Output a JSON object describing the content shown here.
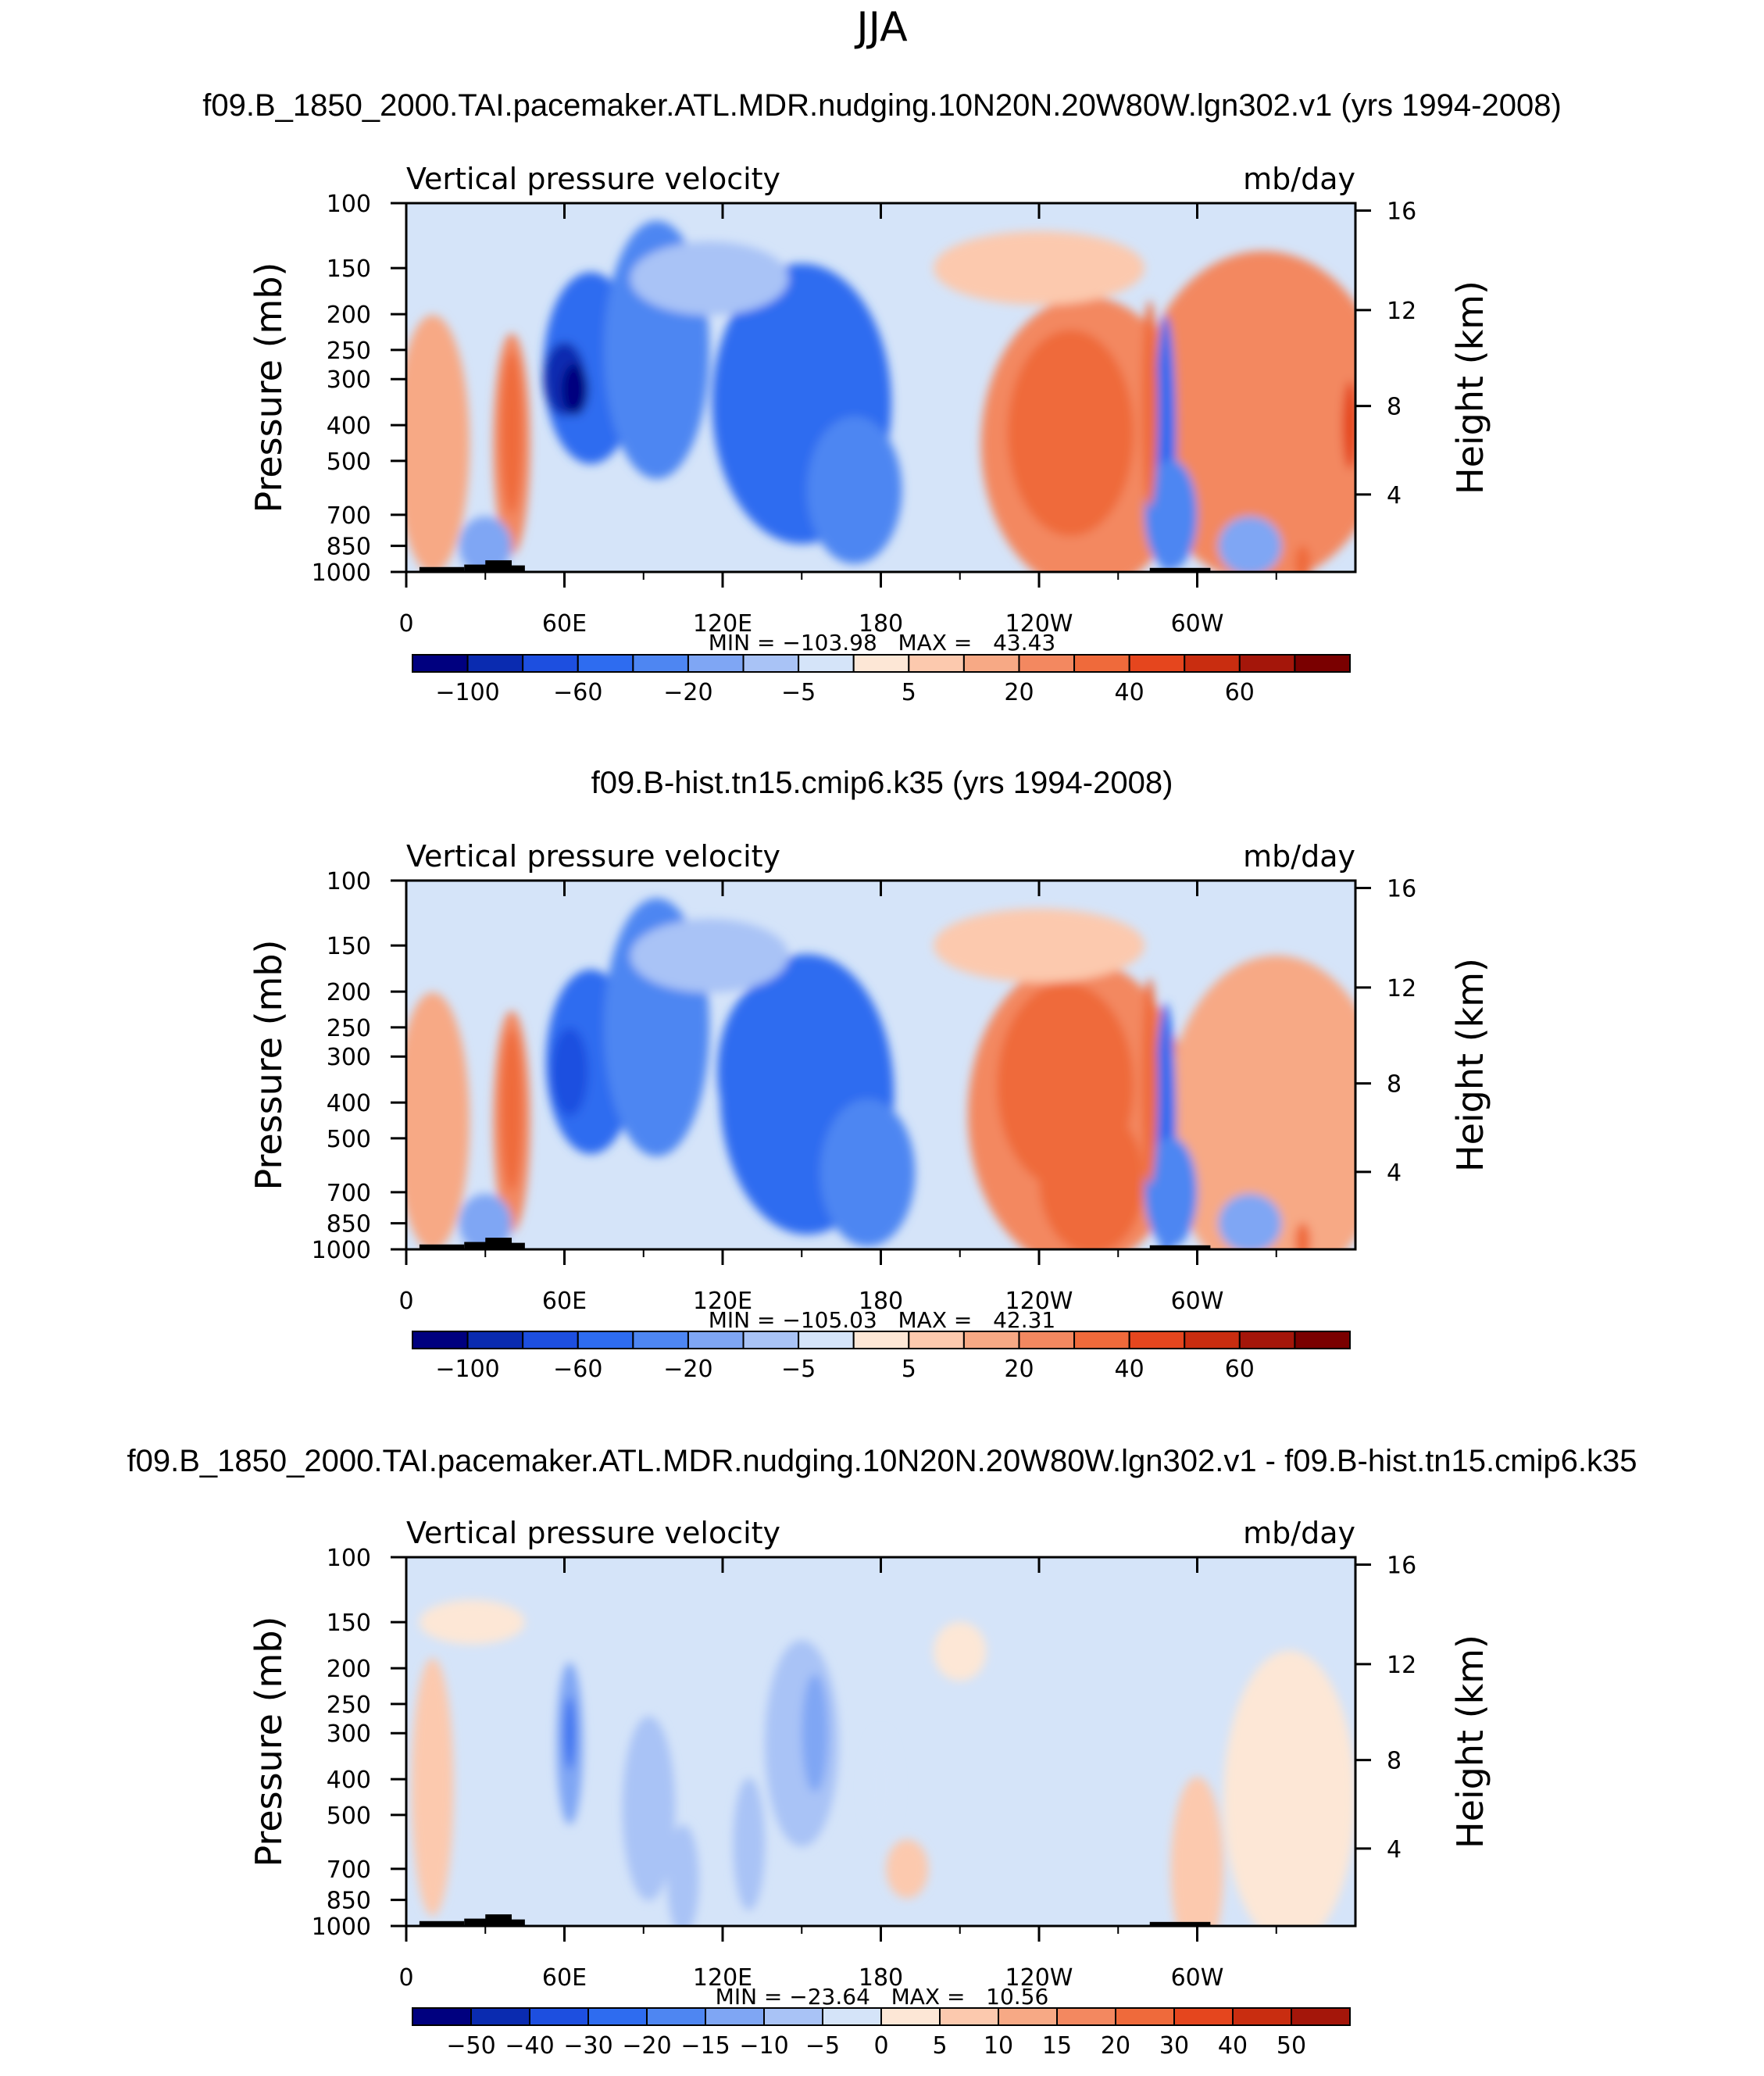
{
  "figure": {
    "season": "JJA"
  },
  "chart_data": [
    {
      "type": "heatmap",
      "title": "f09.B_1850_2000.TAI.pacemaker.ATL.MDR.nudging.10N20N.20W80W.lgn302.v1 (yrs 1994-2008)",
      "variable": "Vertical pressure velocity",
      "units": "mb/day",
      "ylabel": "Pressure (mb)",
      "ylabel_right": "Height (km)",
      "x_ticks": [
        "0",
        "60E",
        "120E",
        "180",
        "120W",
        "60W"
      ],
      "x_range": [
        0,
        360
      ],
      "y_ticks": [
        "100",
        "150",
        "200",
        "250",
        "300",
        "400",
        "500",
        "700",
        "850",
        "1000"
      ],
      "y_range": [
        1000,
        100
      ],
      "height_ticks": [
        "16",
        "12",
        "8",
        "4"
      ],
      "stats": "MIN = −103.98   MAX =   43.43",
      "min": -103.98,
      "max": 43.43,
      "colorbar_labels": [
        "−100",
        "−60",
        "−20",
        "−5",
        "5",
        "20",
        "40",
        "60"
      ],
      "colorbar_colors": [
        "#00007f",
        "#0a2bb0",
        "#1d4fe0",
        "#2e6cf0",
        "#4e86f2",
        "#7fa6f4",
        "#a9c3f6",
        "#d5e4f9",
        "#fde7d6",
        "#fcc9ae",
        "#f7a985",
        "#f38860",
        "#ef6a3b",
        "#e5461e",
        "#c92d10",
        "#a4160a",
        "#7a0000"
      ]
    },
    {
      "type": "heatmap",
      "title": "f09.B-hist.tn15.cmip6.k35 (yrs 1994-2008)",
      "variable": "Vertical pressure velocity",
      "units": "mb/day",
      "ylabel": "Pressure (mb)",
      "ylabel_right": "Height (km)",
      "x_ticks": [
        "0",
        "60E",
        "120E",
        "180",
        "120W",
        "60W"
      ],
      "x_range": [
        0,
        360
      ],
      "y_ticks": [
        "100",
        "150",
        "200",
        "250",
        "300",
        "400",
        "500",
        "700",
        "850",
        "1000"
      ],
      "y_range": [
        1000,
        100
      ],
      "height_ticks": [
        "16",
        "12",
        "8",
        "4"
      ],
      "stats": "MIN = −105.03   MAX =   42.31",
      "min": -105.03,
      "max": 42.31,
      "colorbar_labels": [
        "−100",
        "−60",
        "−20",
        "−5",
        "5",
        "20",
        "40",
        "60"
      ],
      "colorbar_colors": [
        "#00007f",
        "#0a2bb0",
        "#1d4fe0",
        "#2e6cf0",
        "#4e86f2",
        "#7fa6f4",
        "#a9c3f6",
        "#d5e4f9",
        "#fde7d6",
        "#fcc9ae",
        "#f7a985",
        "#f38860",
        "#ef6a3b",
        "#e5461e",
        "#c92d10",
        "#a4160a",
        "#7a0000"
      ]
    },
    {
      "type": "heatmap",
      "title": "f09.B_1850_2000.TAI.pacemaker.ATL.MDR.nudging.10N20N.20W80W.lgn302.v1 - f09.B-hist.tn15.cmip6.k35",
      "variable": "Vertical pressure velocity",
      "units": "mb/day",
      "ylabel": "Pressure (mb)",
      "ylabel_right": "Height (km)",
      "x_ticks": [
        "0",
        "60E",
        "120E",
        "180",
        "120W",
        "60W"
      ],
      "x_range": [
        0,
        360
      ],
      "y_ticks": [
        "100",
        "150",
        "200",
        "250",
        "300",
        "400",
        "500",
        "700",
        "850",
        "1000"
      ],
      "y_range": [
        1000,
        100
      ],
      "height_ticks": [
        "16",
        "12",
        "8",
        "4"
      ],
      "stats": "MIN = −23.64   MAX =   10.56",
      "min": -23.64,
      "max": 10.56,
      "colorbar_labels": [
        "−50",
        "−40",
        "−30",
        "−20",
        "−15",
        "−10",
        "−5",
        "0",
        "5",
        "10",
        "15",
        "20",
        "30",
        "40",
        "50"
      ],
      "colorbar_colors": [
        "#00007f",
        "#0a2bb0",
        "#1d4fe0",
        "#2e6cf0",
        "#4e86f2",
        "#7fa6f4",
        "#a9c3f6",
        "#d5e4f9",
        "#fde7d6",
        "#fcc9ae",
        "#f7a985",
        "#f38860",
        "#ef6a3b",
        "#e5461e",
        "#c92d10",
        "#a4160a"
      ]
    }
  ]
}
